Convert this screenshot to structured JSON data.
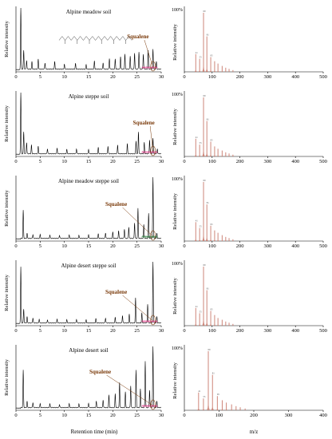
{
  "common": {
    "chrom_ylabel": "Relative intensity",
    "ms_ylabel": "Relative intensity",
    "chrom_xlabel": "Retention time (min)",
    "ms_xlabel": "m/z",
    "percent_label": "100%",
    "compound_label": "Squalene"
  },
  "colors": {
    "trace": "#000000",
    "ms_bars": "#c8786a",
    "annotation": "#7a3a0a",
    "overlay_green": "#1f7a35",
    "overlay_pink": "#e33a8a"
  },
  "chart_data": [
    {
      "type": "line",
      "title": "Alpine meadow soil",
      "xlim": [
        0,
        30
      ],
      "xticks": [
        0,
        5,
        10,
        15,
        20,
        25,
        30
      ],
      "squalene_rt": 28.3,
      "peaks": [
        [
          1.0,
          100
        ],
        [
          1.6,
          30
        ],
        [
          2.2,
          14
        ],
        [
          3.3,
          12
        ],
        [
          4.6,
          16
        ],
        [
          6.0,
          10
        ],
        [
          8.0,
          12
        ],
        [
          10.0,
          8
        ],
        [
          12.3,
          9
        ],
        [
          14.5,
          7
        ],
        [
          16.2,
          13
        ],
        [
          18.0,
          10
        ],
        [
          19.3,
          17
        ],
        [
          20.5,
          16
        ],
        [
          21.6,
          20
        ],
        [
          22.5,
          24
        ],
        [
          23.6,
          21
        ],
        [
          24.5,
          26
        ],
        [
          25.4,
          28
        ],
        [
          26.3,
          24
        ],
        [
          27.3,
          30
        ],
        [
          28.3,
          32
        ],
        [
          29.0,
          12
        ]
      ]
    },
    {
      "type": "line",
      "title": "Alpine steppe soil",
      "xlim": [
        0,
        30
      ],
      "xticks": [
        0,
        5,
        10,
        15,
        20,
        25,
        30
      ],
      "squalene_rt": 28.3,
      "peaks": [
        [
          1.0,
          100
        ],
        [
          1.6,
          35
        ],
        [
          2.2,
          18
        ],
        [
          3.2,
          14
        ],
        [
          4.6,
          12
        ],
        [
          6.5,
          8
        ],
        [
          8.5,
          9
        ],
        [
          10.5,
          7
        ],
        [
          12.5,
          8
        ],
        [
          15.0,
          7
        ],
        [
          17.0,
          10
        ],
        [
          19.0,
          12
        ],
        [
          21.0,
          14
        ],
        [
          23.0,
          16
        ],
        [
          24.8,
          20
        ],
        [
          25.3,
          35
        ],
        [
          26.5,
          18
        ],
        [
          27.6,
          22
        ],
        [
          28.3,
          25
        ],
        [
          29.2,
          8
        ]
      ]
    },
    {
      "type": "line",
      "title": "Alpine meadow steppe soil",
      "xlim": [
        0,
        30
      ],
      "xticks": [
        0,
        5,
        10,
        15,
        20,
        25,
        30
      ],
      "squalene_rt": 28.3,
      "peaks": [
        [
          1.5,
          45
        ],
        [
          2.3,
          8
        ],
        [
          3.5,
          6
        ],
        [
          5.0,
          6
        ],
        [
          7.0,
          5
        ],
        [
          9.0,
          5
        ],
        [
          11.0,
          5
        ],
        [
          13.0,
          5
        ],
        [
          15.0,
          6
        ],
        [
          17.0,
          7
        ],
        [
          18.5,
          9
        ],
        [
          20.0,
          10
        ],
        [
          21.2,
          12
        ],
        [
          22.4,
          15
        ],
        [
          23.3,
          18
        ],
        [
          24.5,
          25
        ],
        [
          25.2,
          48
        ],
        [
          26.4,
          22
        ],
        [
          27.4,
          40
        ],
        [
          28.3,
          100
        ],
        [
          29.1,
          8
        ]
      ]
    },
    {
      "type": "line",
      "title": "Alpine desert steppe soil",
      "xlim": [
        0,
        30
      ],
      "xticks": [
        0,
        5,
        10,
        15,
        20,
        25,
        30
      ],
      "squalene_rt": 28.3,
      "peaks": [
        [
          1.0,
          90
        ],
        [
          1.6,
          22
        ],
        [
          2.3,
          10
        ],
        [
          3.5,
          8
        ],
        [
          4.8,
          6
        ],
        [
          6.5,
          5
        ],
        [
          8.5,
          6
        ],
        [
          10.5,
          5
        ],
        [
          12.5,
          6
        ],
        [
          14.5,
          5
        ],
        [
          16.5,
          7
        ],
        [
          18.5,
          8
        ],
        [
          20.5,
          9
        ],
        [
          22.0,
          12
        ],
        [
          23.4,
          14
        ],
        [
          24.7,
          40
        ],
        [
          26.0,
          16
        ],
        [
          27.2,
          30
        ],
        [
          28.3,
          100
        ],
        [
          29.1,
          10
        ]
      ]
    },
    {
      "type": "line",
      "title": "Alpine desert soil",
      "xlim": [
        0,
        30
      ],
      "xticks": [
        0,
        5,
        10,
        15,
        20,
        25,
        30
      ],
      "squalene_rt": 28.3,
      "peaks": [
        [
          1.5,
          60
        ],
        [
          2.3,
          10
        ],
        [
          3.5,
          8
        ],
        [
          5.0,
          6
        ],
        [
          7.0,
          6
        ],
        [
          9.0,
          5
        ],
        [
          11.0,
          6
        ],
        [
          13.0,
          6
        ],
        [
          15.0,
          7
        ],
        [
          16.6,
          10
        ],
        [
          18.0,
          12
        ],
        [
          19.2,
          20
        ],
        [
          20.5,
          22
        ],
        [
          21.4,
          40
        ],
        [
          22.6,
          25
        ],
        [
          23.7,
          35
        ],
        [
          24.8,
          60
        ],
        [
          25.7,
          30
        ],
        [
          26.7,
          75
        ],
        [
          27.6,
          28
        ],
        [
          28.3,
          100
        ],
        [
          29.1,
          10
        ]
      ]
    },
    {
      "type": "bar",
      "xlim": [
        0,
        500
      ],
      "xticks": [
        0,
        100,
        200,
        300,
        400,
        500
      ],
      "values": [
        [
          41,
          30
        ],
        [
          55,
          22
        ],
        [
          69,
          100
        ],
        [
          81,
          60
        ],
        [
          95,
          25
        ],
        [
          109,
          18
        ],
        [
          121,
          14
        ],
        [
          136,
          10
        ],
        [
          149,
          7
        ],
        [
          161,
          5
        ],
        [
          175,
          3
        ]
      ]
    },
    {
      "type": "bar",
      "xlim": [
        0,
        500
      ],
      "xticks": [
        0,
        100,
        200,
        300,
        400,
        500
      ],
      "values": [
        [
          41,
          30
        ],
        [
          55,
          20
        ],
        [
          69,
          100
        ],
        [
          81,
          60
        ],
        [
          95,
          25
        ],
        [
          109,
          17
        ],
        [
          121,
          13
        ],
        [
          136,
          10
        ],
        [
          149,
          7
        ],
        [
          161,
          5
        ],
        [
          175,
          3
        ]
      ]
    },
    {
      "type": "bar",
      "xlim": [
        0,
        500
      ],
      "xticks": [
        0,
        100,
        200,
        300,
        400,
        500
      ],
      "values": [
        [
          41,
          32
        ],
        [
          55,
          22
        ],
        [
          69,
          100
        ],
        [
          81,
          62
        ],
        [
          95,
          26
        ],
        [
          109,
          18
        ],
        [
          121,
          14
        ],
        [
          136,
          10
        ],
        [
          149,
          7
        ],
        [
          161,
          5
        ],
        [
          175,
          3
        ]
      ]
    },
    {
      "type": "bar",
      "xlim": [
        0,
        500
      ],
      "xticks": [
        0,
        100,
        200,
        300,
        400,
        500
      ],
      "values": [
        [
          41,
          30
        ],
        [
          55,
          21
        ],
        [
          69,
          100
        ],
        [
          81,
          60
        ],
        [
          95,
          25
        ],
        [
          109,
          18
        ],
        [
          121,
          13
        ],
        [
          136,
          10
        ],
        [
          149,
          7
        ],
        [
          161,
          5
        ],
        [
          175,
          3
        ]
      ]
    },
    {
      "type": "bar",
      "xlim": [
        0,
        400
      ],
      "xticks": [
        0,
        100,
        200,
        300,
        400
      ],
      "values": [
        [
          41,
          30
        ],
        [
          55,
          20
        ],
        [
          69,
          100
        ],
        [
          81,
          60
        ],
        [
          95,
          24
        ],
        [
          109,
          17
        ],
        [
          121,
          13
        ],
        [
          136,
          10
        ],
        [
          149,
          7
        ],
        [
          161,
          5
        ],
        [
          175,
          3
        ]
      ]
    }
  ]
}
